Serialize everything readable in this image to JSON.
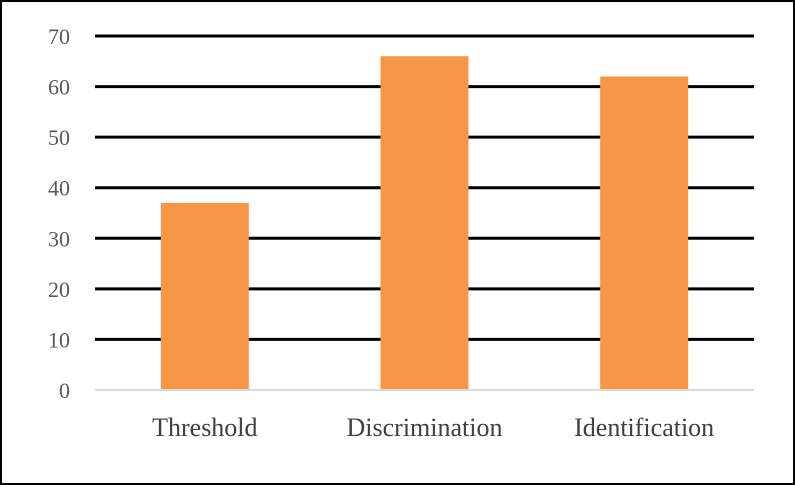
{
  "chart_data": {
    "type": "bar",
    "categories": [
      "Threshold",
      "Discrimination",
      "Identification"
    ],
    "values": [
      37,
      66,
      62
    ],
    "title": "",
    "xlabel": "",
    "ylabel": "",
    "ylim": [
      0,
      70
    ],
    "yticks": [
      0,
      10,
      20,
      30,
      40,
      50,
      60,
      70
    ],
    "grid": true,
    "legend": "none",
    "bar_color": "#F79646",
    "grid_color": "#000000",
    "axis_color": "#D9D9D9"
  }
}
